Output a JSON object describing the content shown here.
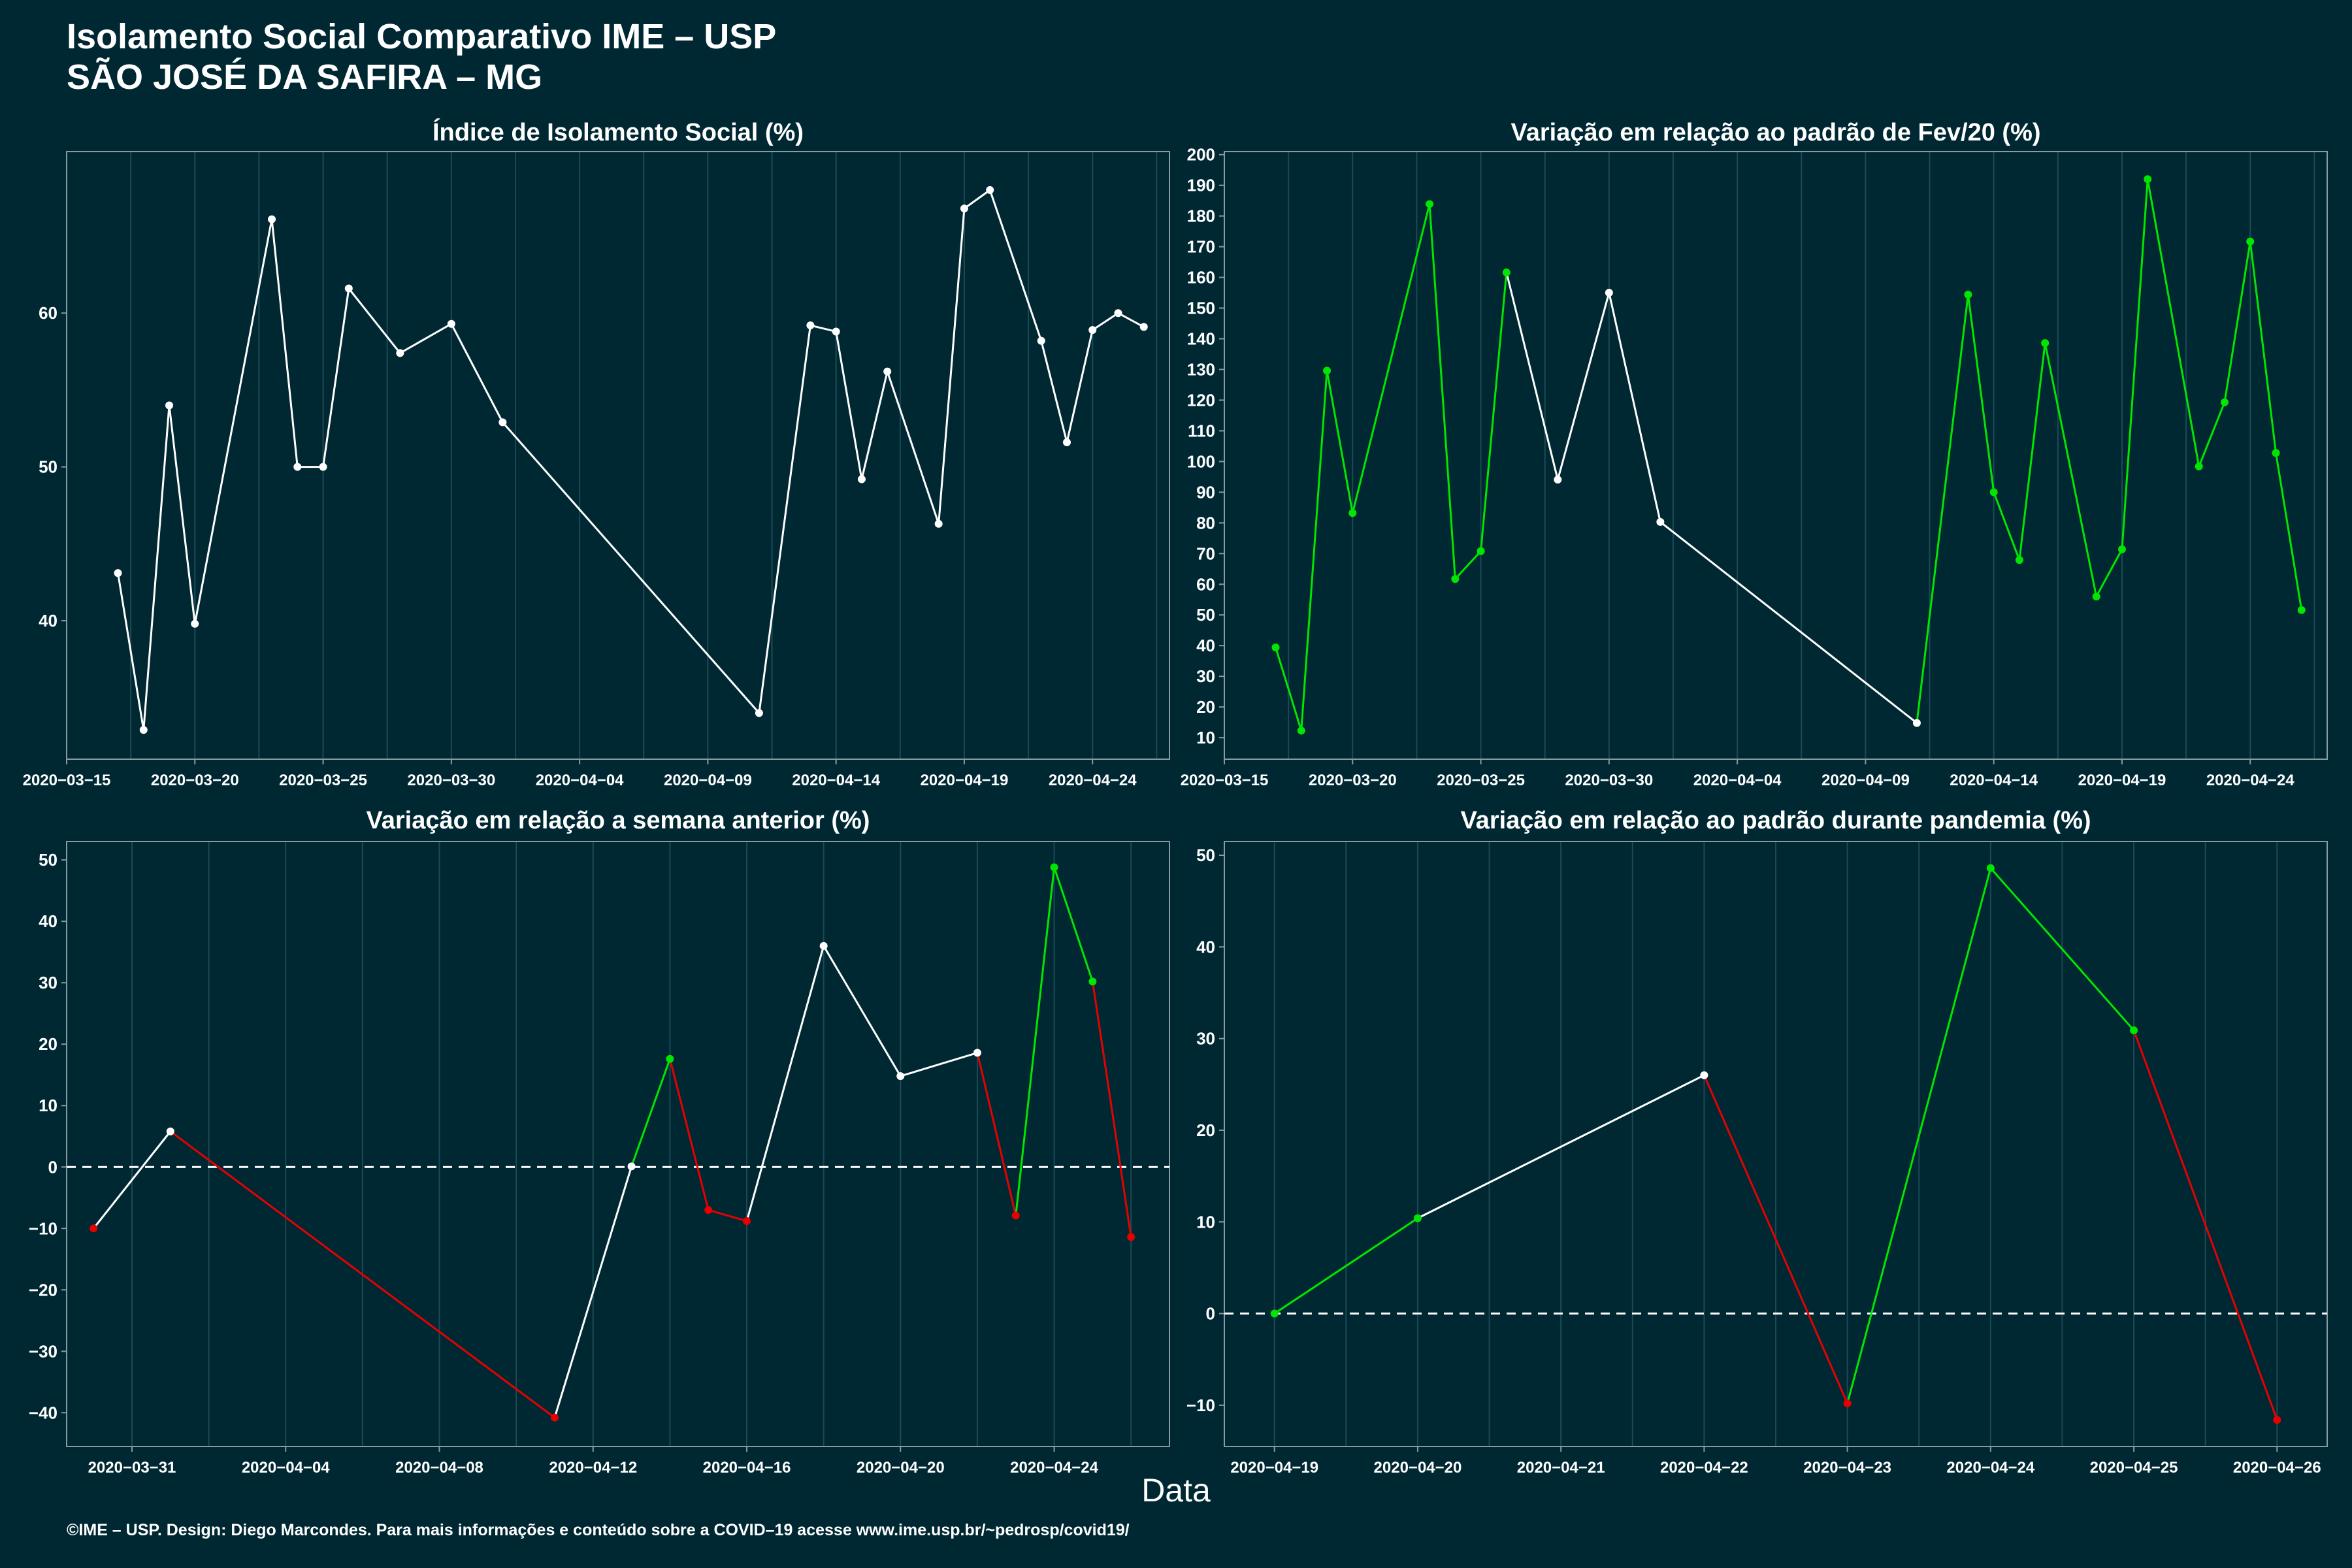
{
  "header": {
    "title_line1": "Isolamento Social Comparativo IME – USP",
    "title_line2": "SÃO JOSÉ DA SAFIRA – MG"
  },
  "xlabel": "Data",
  "footer": "©IME – USP. Design: Diego Marcondes. Para mais informações e conteúdo sobre a COVID–19 acesse www.ime.usp.br/~pedrosp/covid19/",
  "colors": {
    "background": "#002833",
    "white": "#ffffff",
    "green": "#00e600",
    "red": "#e60000",
    "grid": "#1b4a55"
  },
  "chart_data": [
    {
      "id": "isolamento",
      "type": "line",
      "title": "Índice de Isolamento Social (%)",
      "x_ticks": [
        "2020-03-15",
        "2020-03-20",
        "2020-03-25",
        "2020-03-30",
        "2020-04-04",
        "2020-04-09",
        "2020-04-14",
        "2020-04-19",
        "2020-04-24"
      ],
      "y_ticks": [
        40,
        50,
        60
      ],
      "xlim": [
        "2020-03-15",
        "2020-04-27"
      ],
      "ylim": [
        31.0,
        70.5
      ],
      "grid": true,
      "reference_line": null,
      "points": [
        {
          "x": "2020-03-17",
          "y": 43.1,
          "c": "w"
        },
        {
          "x": "2020-03-18",
          "y": 32.9,
          "c": "w"
        },
        {
          "x": "2020-03-19",
          "y": 54.0,
          "c": "w"
        },
        {
          "x": "2020-03-20",
          "y": 39.8,
          "c": "w"
        },
        {
          "x": "2020-03-23",
          "y": 66.1,
          "c": "w"
        },
        {
          "x": "2020-03-24",
          "y": 50.0,
          "c": "w"
        },
        {
          "x": "2020-03-25",
          "y": 50.0,
          "c": "w"
        },
        {
          "x": "2020-03-26",
          "y": 61.6,
          "c": "w"
        },
        {
          "x": "2020-03-28",
          "y": 57.4,
          "c": "w"
        },
        {
          "x": "2020-03-30",
          "y": 59.3,
          "c": "w"
        },
        {
          "x": "2020-04-01",
          "y": 52.9,
          "c": "w"
        },
        {
          "x": "2020-04-11",
          "y": 34.0,
          "c": "w"
        },
        {
          "x": "2020-04-13",
          "y": 59.2,
          "c": "w"
        },
        {
          "x": "2020-04-14",
          "y": 58.8,
          "c": "w"
        },
        {
          "x": "2020-04-15",
          "y": 49.2,
          "c": "w"
        },
        {
          "x": "2020-04-16",
          "y": 56.2,
          "c": "w"
        },
        {
          "x": "2020-04-18",
          "y": 46.3,
          "c": "w"
        },
        {
          "x": "2020-04-19",
          "y": 66.8,
          "c": "w"
        },
        {
          "x": "2020-04-20",
          "y": 68.0,
          "c": "w"
        },
        {
          "x": "2020-04-22",
          "y": 58.2,
          "c": "w"
        },
        {
          "x": "2020-04-23",
          "y": 51.6,
          "c": "w"
        },
        {
          "x": "2020-04-24",
          "y": 58.9,
          "c": "w"
        },
        {
          "x": "2020-04-25",
          "y": 60.0,
          "c": "w"
        },
        {
          "x": "2020-04-26",
          "y": 59.1,
          "c": "w"
        }
      ]
    },
    {
      "id": "fev20",
      "type": "line",
      "title": "Variação em relação ao padrão de Fev/20 (%)",
      "x_ticks": [
        "2020-03-15",
        "2020-03-20",
        "2020-03-25",
        "2020-03-30",
        "2020-04-04",
        "2020-04-09",
        "2020-04-14",
        "2020-04-19",
        "2020-04-24"
      ],
      "y_ticks": [
        10,
        20,
        30,
        40,
        50,
        60,
        70,
        80,
        90,
        100,
        110,
        120,
        130,
        140,
        150,
        160,
        170,
        180,
        190,
        200
      ],
      "xlim": [
        "2020-03-15",
        "2020-04-27"
      ],
      "ylim": [
        3,
        201
      ],
      "grid": true,
      "reference_line": null,
      "points": [
        {
          "x": "2020-03-17",
          "y": 39.4,
          "c": "g"
        },
        {
          "x": "2020-03-18",
          "y": 12.3,
          "c": "g"
        },
        {
          "x": "2020-03-19",
          "y": 129.6,
          "c": "g"
        },
        {
          "x": "2020-03-20",
          "y": 83.2,
          "c": "g"
        },
        {
          "x": "2020-03-23",
          "y": 183.9,
          "c": "g"
        },
        {
          "x": "2020-03-24",
          "y": 61.7,
          "c": "g"
        },
        {
          "x": "2020-03-25",
          "y": 70.8,
          "c": "g"
        },
        {
          "x": "2020-03-26",
          "y": 161.6,
          "c": "g"
        },
        {
          "x": "2020-03-28",
          "y": 94.1,
          "c": "w"
        },
        {
          "x": "2020-03-30",
          "y": 155.0,
          "c": "w"
        },
        {
          "x": "2020-04-01",
          "y": 80.3,
          "c": "w"
        },
        {
          "x": "2020-04-11",
          "y": 14.8,
          "c": "w"
        },
        {
          "x": "2020-04-13",
          "y": 154.4,
          "c": "g"
        },
        {
          "x": "2020-04-14",
          "y": 90.0,
          "c": "g"
        },
        {
          "x": "2020-04-15",
          "y": 67.9,
          "c": "g"
        },
        {
          "x": "2020-04-16",
          "y": 138.6,
          "c": "g"
        },
        {
          "x": "2020-04-18",
          "y": 56.0,
          "c": "g"
        },
        {
          "x": "2020-04-19",
          "y": 71.4,
          "c": "g"
        },
        {
          "x": "2020-04-20",
          "y": 192.0,
          "c": "g"
        },
        {
          "x": "2020-04-22",
          "y": 98.4,
          "c": "g"
        },
        {
          "x": "2020-04-23",
          "y": 119.3,
          "c": "g"
        },
        {
          "x": "2020-04-24",
          "y": 171.7,
          "c": "g"
        },
        {
          "x": "2020-04-25",
          "y": 102.8,
          "c": "g"
        },
        {
          "x": "2020-04-26",
          "y": 51.6,
          "c": "g"
        }
      ]
    },
    {
      "id": "semana",
      "type": "line",
      "title": "Variação em relação a semana anterior (%)",
      "x_ticks": [
        "2020-03-31",
        "2020-04-04",
        "2020-04-08",
        "2020-04-12",
        "2020-04-16",
        "2020-04-20",
        "2020-04-24"
      ],
      "y_ticks": [
        -40,
        -30,
        -20,
        -10,
        0,
        10,
        20,
        30,
        40,
        50
      ],
      "xlim": [
        "2020-03-29.3",
        "2020-04-27.0"
      ],
      "ylim": [
        -45.5,
        53
      ],
      "grid": true,
      "reference_line": 0,
      "points": [
        {
          "x": "2020-03-30",
          "y": -10.0,
          "c": "r"
        },
        {
          "x": "2020-04-01",
          "y": 5.8,
          "c": "w"
        },
        {
          "x": "2020-04-11",
          "y": -40.8,
          "c": "r"
        },
        {
          "x": "2020-04-13",
          "y": 0.1,
          "c": "w"
        },
        {
          "x": "2020-04-14",
          "y": 17.6,
          "c": "g"
        },
        {
          "x": "2020-04-15",
          "y": -7.0,
          "c": "r"
        },
        {
          "x": "2020-04-16",
          "y": -8.8,
          "c": "r"
        },
        {
          "x": "2020-04-18",
          "y": 36.0,
          "c": "w"
        },
        {
          "x": "2020-04-20",
          "y": 14.8,
          "c": "w"
        },
        {
          "x": "2020-04-22",
          "y": 18.6,
          "c": "w"
        },
        {
          "x": "2020-04-23",
          "y": -7.9,
          "c": "r"
        },
        {
          "x": "2020-04-24",
          "y": 48.8,
          "c": "g"
        },
        {
          "x": "2020-04-25",
          "y": 30.2,
          "c": "g"
        },
        {
          "x": "2020-04-26",
          "y": -11.4,
          "c": "r"
        }
      ]
    },
    {
      "id": "pandemia",
      "type": "line",
      "title": "Variação em relação ao padrão durante pandemia (%)",
      "x_ticks": [
        "2020-04-19",
        "2020-04-20",
        "2020-04-21",
        "2020-04-22",
        "2020-04-23",
        "2020-04-24",
        "2020-04-25",
        "2020-04-26"
      ],
      "y_ticks": [
        -10,
        0,
        10,
        20,
        30,
        40,
        50
      ],
      "xlim": [
        "2020-04-18.65",
        "2020-04-26.35"
      ],
      "ylim": [
        -14.5,
        51.5
      ],
      "grid": true,
      "reference_line": 0,
      "points": [
        {
          "x": "2020-04-19",
          "y": 0.0,
          "c": "g"
        },
        {
          "x": "2020-04-20",
          "y": 10.4,
          "c": "g"
        },
        {
          "x": "2020-04-22",
          "y": 26.0,
          "c": "w"
        },
        {
          "x": "2020-04-23",
          "y": -9.8,
          "c": "r"
        },
        {
          "x": "2020-04-24",
          "y": 48.6,
          "c": "g"
        },
        {
          "x": "2020-04-25",
          "y": 30.9,
          "c": "g"
        },
        {
          "x": "2020-04-26",
          "y": -11.6,
          "c": "r"
        }
      ]
    }
  ]
}
